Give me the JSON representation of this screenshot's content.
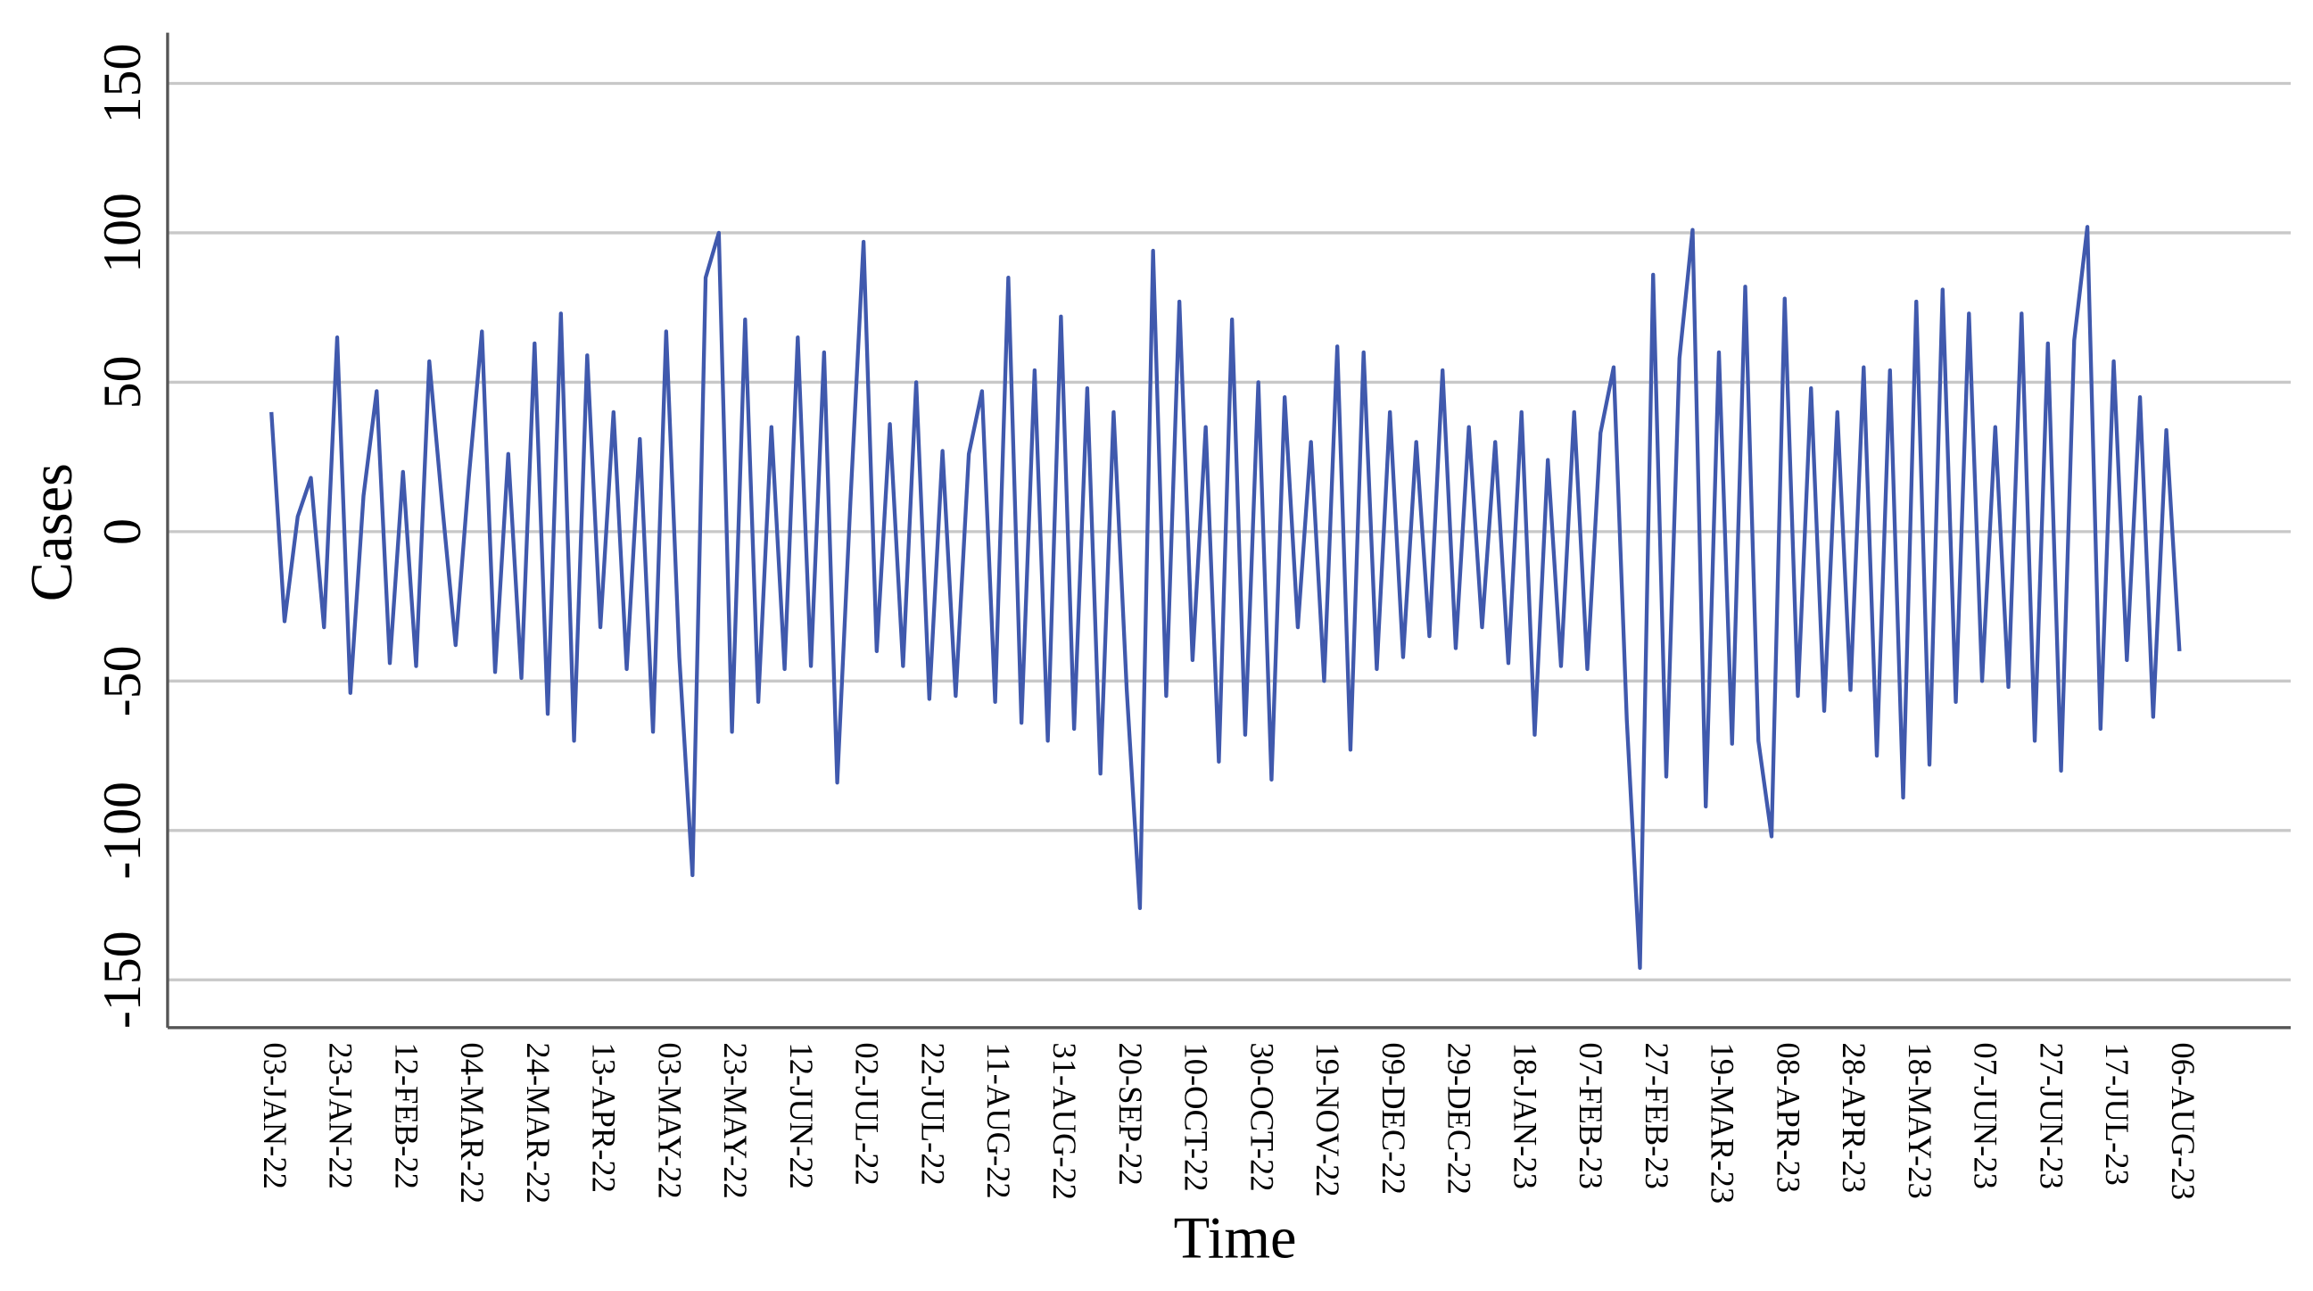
{
  "chart_data": {
    "type": "line",
    "x_label": "Time",
    "y_label": "Cases",
    "categories": [
      "03-JAN-22",
      null,
      null,
      null,
      null,
      "23-JAN-22",
      null,
      null,
      null,
      null,
      "12-FEB-22",
      null,
      null,
      null,
      null,
      "04-MAR-22",
      null,
      null,
      null,
      null,
      "24-MAR-22",
      null,
      null,
      null,
      null,
      "13-APR-22",
      null,
      null,
      null,
      null,
      "03-MAY-22",
      null,
      null,
      null,
      null,
      "23-MAY-22",
      null,
      null,
      null,
      null,
      "12-JUN-22",
      null,
      null,
      null,
      null,
      "02-JUL-22",
      null,
      null,
      null,
      null,
      "22-JUL-22",
      null,
      null,
      null,
      null,
      "11-AUG-22",
      null,
      null,
      null,
      null,
      "31-AUG-22",
      null,
      null,
      null,
      null,
      "20-SEP-22",
      null,
      null,
      null,
      null,
      "10-OCT-22",
      null,
      null,
      null,
      null,
      "30-OCT-22",
      null,
      null,
      null,
      null,
      "19-NOV-22",
      null,
      null,
      null,
      null,
      "09-DEC-22",
      null,
      null,
      null,
      null,
      "29-DEC-22",
      null,
      null,
      null,
      null,
      "18-JAN-23",
      null,
      null,
      null,
      null,
      "07-FEB-23",
      null,
      null,
      null,
      null,
      "27-FEB-23",
      null,
      null,
      null,
      null,
      "19-MAR-23",
      null,
      null,
      null,
      null,
      "08-APR-23",
      null,
      null,
      null,
      null,
      "28-APR-23",
      null,
      null,
      null,
      null,
      "18-MAY-23",
      null,
      null,
      null,
      null,
      "07-JUN-23",
      null,
      null,
      null,
      null,
      "27-JUN-23",
      null,
      null,
      null,
      null,
      "17-JUL-23",
      null,
      null,
      null,
      null,
      "06-AUG-23"
    ],
    "values": [
      40,
      -30,
      5,
      18,
      -32,
      65,
      -54,
      12,
      47,
      -44,
      20,
      -45,
      57,
      8,
      -38,
      18,
      67,
      -47,
      26,
      -49,
      63,
      -61,
      73,
      -70,
      59,
      -32,
      40,
      -46,
      31,
      -67,
      67,
      -42,
      -115,
      85,
      100,
      -67,
      71,
      -57,
      35,
      -46,
      65,
      -45,
      60,
      -84,
      10,
      97,
      -40,
      36,
      -45,
      50,
      -56,
      27,
      -55,
      26,
      47,
      -57,
      85,
      -64,
      54,
      -70,
      72,
      -66,
      48,
      -81,
      40,
      -53,
      -126,
      94,
      -55,
      77,
      -43,
      35,
      -77,
      71,
      -68,
      50,
      -83,
      45,
      -32,
      30,
      -50,
      62,
      -73,
      60,
      -46,
      40,
      -42,
      30,
      -35,
      54,
      -39,
      35,
      -32,
      30,
      -44,
      40,
      -68,
      24,
      -45,
      40,
      -46,
      33,
      55,
      -63,
      -146,
      86,
      -82,
      58,
      101,
      -92,
      60,
      -71,
      82,
      -70,
      -102,
      78,
      -55,
      48,
      -60,
      40,
      -53,
      55,
      -75,
      54,
      -89,
      77,
      -78,
      81,
      -57,
      73,
      -50,
      35,
      -52,
      73,
      -70,
      63,
      -80,
      64,
      102,
      -66,
      57,
      -43,
      45,
      -62,
      34,
      -40
    ],
    "color": "#4059ad",
    "ylim": [
      -166,
      167
    ],
    "yticks": [
      -150,
      -100,
      -50,
      0,
      50,
      100,
      150
    ],
    "grid": true
  }
}
